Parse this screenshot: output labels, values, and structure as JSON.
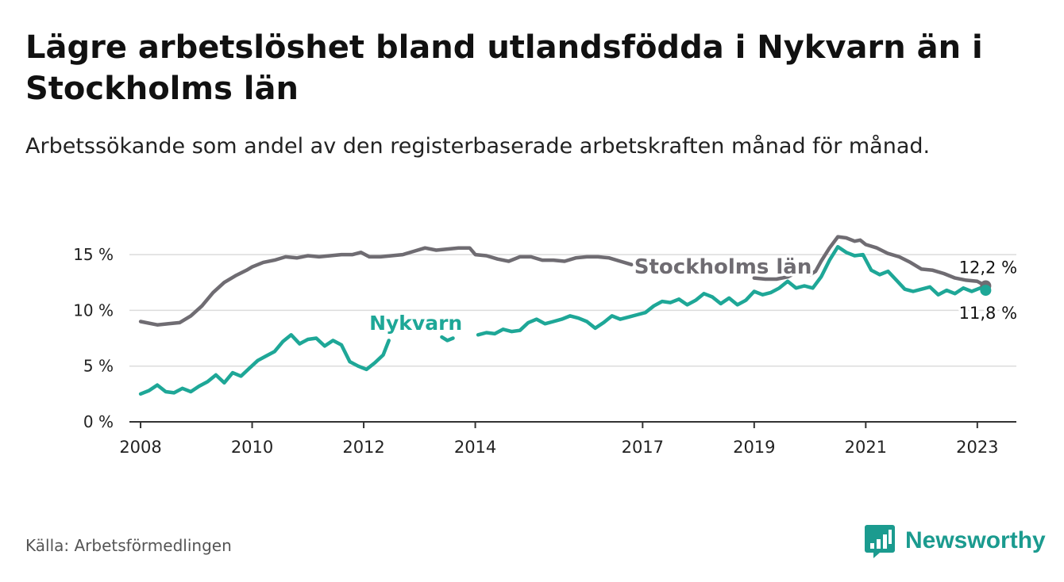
{
  "header": {
    "title": "Lägre arbetslöshet bland utlandsfödda i Nykvarn än i Stockholms län",
    "subtitle": "Arbetssökande som andel av den registerbaserade arbetskraften månad för månad."
  },
  "footer": {
    "source": "Källa: Arbetsförmedlingen",
    "brand": "Newsworthy",
    "brand_icon": "bar-chart-logo-icon"
  },
  "colors": {
    "nykvarn": "#1ea797",
    "stockholm": "#6f6c72",
    "grid": "#dcdcdc",
    "axis": "#333333",
    "brand": "#1b9b8f"
  },
  "chart_data": {
    "type": "line",
    "title": "Lägre arbetslöshet bland utlandsfödda i Nykvarn än i Stockholms län",
    "xlabel": "",
    "ylabel": "",
    "ylim": [
      0,
      16.5
    ],
    "xlim": [
      2007.8,
      2023.7
    ],
    "yticks": [
      0,
      5,
      10,
      15
    ],
    "ytick_labels": [
      "0 %",
      "5 %",
      "10 %",
      "15 %"
    ],
    "xticks": [
      2008,
      2010,
      2012,
      2014,
      2017,
      2019,
      2021,
      2023
    ],
    "xtick_labels": [
      "2008",
      "2010",
      "2012",
      "2014",
      "2017",
      "2019",
      "2021",
      "2023"
    ],
    "grid": true,
    "series": [
      {
        "name": "Stockholms län",
        "label": "Stockholms län",
        "end_label": "12,2 %",
        "segments": [
          {
            "x": [
              2008.0,
              2008.3,
              2008.5,
              2008.7,
              2008.9,
              2009.1,
              2009.3,
              2009.5,
              2009.7,
              2009.9,
              2010.0,
              2010.2,
              2010.4,
              2010.6,
              2010.8,
              2011.0,
              2011.2,
              2011.4,
              2011.6,
              2011.8,
              2011.95,
              2012.1,
              2012.3,
              2012.5,
              2012.7,
              2012.9,
              2013.1,
              2013.3,
              2013.5,
              2013.7,
              2013.9,
              2014.0,
              2014.2,
              2014.4,
              2014.6,
              2014.8,
              2015.0,
              2015.2,
              2015.4,
              2015.6,
              2015.8,
              2016.0,
              2016.2,
              2016.4,
              2016.6,
              2016.8
            ],
            "y": [
              9.0,
              8.7,
              8.8,
              8.9,
              9.5,
              10.4,
              11.6,
              12.5,
              13.1,
              13.6,
              13.9,
              14.3,
              14.5,
              14.8,
              14.7,
              14.9,
              14.8,
              14.9,
              15.0,
              15.0,
              15.2,
              14.8,
              14.8,
              14.9,
              15.0,
              15.3,
              15.6,
              15.4,
              15.5,
              15.6,
              15.6,
              15.0,
              14.9,
              14.6,
              14.4,
              14.8,
              14.8,
              14.5,
              14.5,
              14.4,
              14.7,
              14.8,
              14.8,
              14.7,
              14.4,
              14.1
            ]
          },
          {
            "x": [
              2019.0,
              2019.2,
              2019.4,
              2019.6,
              2019.8,
              2020.0,
              2020.1,
              2020.2,
              2020.35,
              2020.5,
              2020.65,
              2020.8,
              2020.9,
              2021.0,
              2021.2,
              2021.4,
              2021.6,
              2021.8,
              2022.0,
              2022.2,
              2022.4,
              2022.6,
              2022.8,
              2023.0,
              2023.15
            ],
            "y": [
              12.9,
              12.8,
              12.8,
              13.0,
              13.5,
              13.2,
              13.5,
              14.4,
              15.6,
              16.6,
              16.5,
              16.2,
              16.3,
              15.9,
              15.6,
              15.1,
              14.8,
              14.3,
              13.7,
              13.6,
              13.3,
              12.9,
              12.7,
              12.6,
              12.2
            ]
          }
        ]
      },
      {
        "name": "Nykvarn",
        "label": "Nykvarn",
        "end_label": "11,8 %",
        "segments": [
          {
            "x": [
              2008.0,
              2008.15,
              2008.3,
              2008.45,
              2008.6,
              2008.75,
              2008.9,
              2009.05,
              2009.2,
              2009.35,
              2009.5,
              2009.65,
              2009.8,
              2009.95,
              2010.1,
              2010.25,
              2010.4,
              2010.55,
              2010.7,
              2010.85,
              2011.0,
              2011.15,
              2011.3,
              2011.45,
              2011.6,
              2011.75,
              2011.9,
              2012.05,
              2012.2,
              2012.35,
              2012.45
            ],
            "y": [
              2.5,
              2.8,
              3.3,
              2.7,
              2.6,
              3.0,
              2.7,
              3.2,
              3.6,
              4.2,
              3.5,
              4.4,
              4.1,
              4.8,
              5.5,
              5.9,
              6.3,
              7.2,
              7.8,
              7.0,
              7.4,
              7.5,
              6.8,
              7.3,
              6.9,
              5.4,
              5.0,
              4.7,
              5.3,
              6.0,
              7.3
            ]
          },
          {
            "x": [
              2013.4,
              2013.5,
              2013.6
            ],
            "y": [
              7.6,
              7.3,
              7.5
            ]
          },
          {
            "x": [
              2014.05,
              2014.2,
              2014.35,
              2014.5,
              2014.65,
              2014.8,
              2014.95,
              2015.1,
              2015.25,
              2015.4,
              2015.55,
              2015.7,
              2015.85,
              2016.0,
              2016.15,
              2016.3,
              2016.45,
              2016.6,
              2016.75,
              2016.9,
              2017.05,
              2017.2,
              2017.35,
              2017.5,
              2017.65,
              2017.8,
              2017.95,
              2018.1,
              2018.25,
              2018.4,
              2018.55,
              2018.7,
              2018.85,
              2019.0,
              2019.15,
              2019.3,
              2019.45,
              2019.6,
              2019.75,
              2019.9,
              2020.05,
              2020.2,
              2020.35,
              2020.5,
              2020.65,
              2020.8,
              2020.95,
              2021.1,
              2021.25,
              2021.4,
              2021.55,
              2021.7,
              2021.85,
              2022.0,
              2022.15,
              2022.3,
              2022.45,
              2022.6,
              2022.75,
              2022.9,
              2023.05,
              2023.15
            ],
            "y": [
              7.8,
              8.0,
              7.9,
              8.3,
              8.1,
              8.2,
              8.9,
              9.2,
              8.8,
              9.0,
              9.2,
              9.5,
              9.3,
              9.0,
              8.4,
              8.9,
              9.5,
              9.2,
              9.4,
              9.6,
              9.8,
              10.4,
              10.8,
              10.7,
              11.0,
              10.5,
              10.9,
              11.5,
              11.2,
              10.6,
              11.1,
              10.5,
              10.9,
              11.7,
              11.4,
              11.6,
              12.0,
              12.6,
              12.0,
              12.2,
              12.0,
              13.0,
              14.5,
              15.7,
              15.2,
              14.9,
              15.0,
              13.6,
              13.2,
              13.5,
              12.7,
              11.9,
              11.7,
              11.9,
              12.1,
              11.4,
              11.8,
              11.5,
              12.0,
              11.7,
              12.0,
              11.8
            ]
          }
        ]
      }
    ]
  }
}
